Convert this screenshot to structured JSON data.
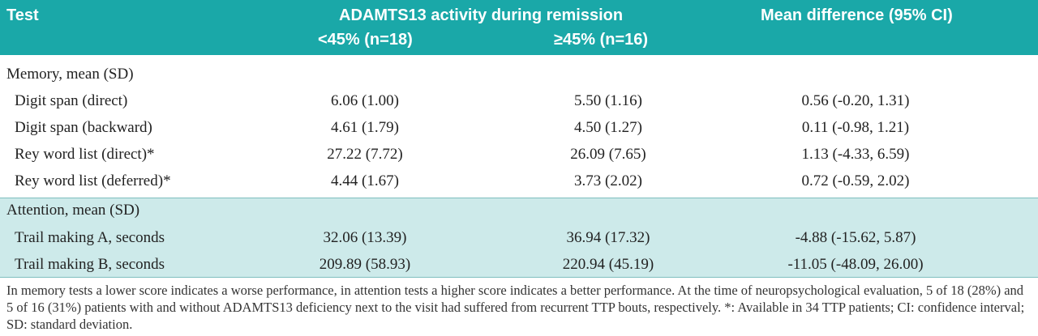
{
  "header": {
    "test": "Test",
    "group_title": "ADAMTS13 activity during remission",
    "col_low": "<45% (n=18)",
    "col_high": "≥45% (n=16)",
    "col_diff": "Mean difference (95% CI)"
  },
  "sections": [
    {
      "label": "Memory, mean (SD)",
      "rows": [
        {
          "test": "Digit span (direct)",
          "low": "6.06 (1.00)",
          "high": "5.50 (1.16)",
          "diff": "0.56 (-0.20, 1.31)"
        },
        {
          "test": "Digit span (backward)",
          "low": "4.61 (1.79)",
          "high": "4.50 (1.27)",
          "diff": "0.11 (-0.98, 1.21)"
        },
        {
          "test": "Rey word list (direct)*",
          "low": "27.22 (7.72)",
          "high": "26.09 (7.65)",
          "diff": "1.13 (-4.33, 6.59)"
        },
        {
          "test": "Rey word list (deferred)*",
          "low": "4.44 (1.67)",
          "high": "3.73 (2.02)",
          "diff": "0.72 (-0.59, 2.02)"
        }
      ]
    },
    {
      "label": "Attention, mean (SD)",
      "rows": [
        {
          "test": "Trail making A, seconds",
          "low": "32.06 (13.39)",
          "high": "36.94 (17.32)",
          "diff": "-4.88 (-15.62, 5.87)"
        },
        {
          "test": "Trail making B, seconds",
          "low": "209.89 (58.93)",
          "high": "220.94 (45.19)",
          "diff": "-11.05 (-48.09, 26.00)"
        }
      ]
    }
  ],
  "footnote": "In memory tests a lower score indicates a worse performance, in attention tests a higher score indicates a better performance. At the time of neuropsychological evaluation, 5 of 18 (28%) and 5 of 16 (31%) patients with and without ADAMTS13 deficiency next to the visit had suffered from recurrent TTP bouts, respectively. *: Available in 34 TTP patients; CI: confidence interval; SD: standard deviation.",
  "colors": {
    "header_bg": "#1aa8a8",
    "attention_band_bg": "#cdeaea"
  }
}
